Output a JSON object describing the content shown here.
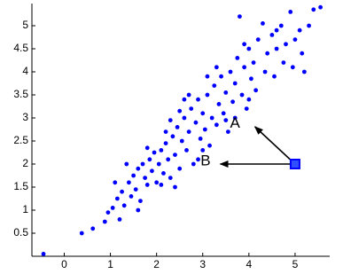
{
  "chart_data": {
    "type": "scatter",
    "x": [
      -0.45,
      0.38,
      0.62,
      0.88,
      0.95,
      1.05,
      1.2,
      1.15,
      1.25,
      1.3,
      1.4,
      1.45,
      1.5,
      1.55,
      1.6,
      1.65,
      1.7,
      1.75,
      1.8,
      1.85,
      1.9,
      1.95,
      2.0,
      2.05,
      2.1,
      2.15,
      2.2,
      2.25,
      2.3,
      2.35,
      2.4,
      2.45,
      2.5,
      2.55,
      2.6,
      2.65,
      2.7,
      2.75,
      2.8,
      2.85,
      2.9,
      2.95,
      3.0,
      3.05,
      3.1,
      3.15,
      3.2,
      3.25,
      3.3,
      3.35,
      3.4,
      3.45,
      3.5,
      3.55,
      3.6,
      3.65,
      3.7,
      3.75,
      3.8,
      3.85,
      3.9,
      3.95,
      4.0,
      4.05,
      4.1,
      4.15,
      4.2,
      4.3,
      4.35,
      4.4,
      4.5,
      4.55,
      4.6,
      4.7,
      4.75,
      4.8,
      4.9,
      4.95,
      5.0,
      5.1,
      5.15,
      5.2,
      5.3,
      5.4,
      5.55,
      2.3,
      2.1,
      1.6,
      3.0,
      2.7,
      3.5,
      3.3,
      1.8,
      2.9,
      2.4,
      3.7,
      4.0,
      4.6,
      2.6,
      2.2,
      3.1,
      1.35,
      1.1,
      3.9,
      2.5
    ],
    "y": [
      0.05,
      0.5,
      0.6,
      0.75,
      0.95,
      1.05,
      0.8,
      1.25,
      1.4,
      1.1,
      1.6,
      1.3,
      1.75,
      1.45,
      1.9,
      1.2,
      2.0,
      1.7,
      1.55,
      2.1,
      1.85,
      2.25,
      1.6,
      2.0,
      2.3,
      1.8,
      2.45,
      2.1,
      1.7,
      2.6,
      2.2,
      2.8,
      1.9,
      2.5,
      3.0,
      2.3,
      2.7,
      3.2,
      2.0,
      2.9,
      3.4,
      2.55,
      3.1,
      2.75,
      3.5,
      2.4,
      3.0,
      3.7,
      2.85,
      3.3,
      3.9,
      3.1,
      3.55,
      2.7,
      4.0,
      3.35,
      3.75,
      4.3,
      5.2,
      3.5,
      4.1,
      3.2,
      4.5,
      3.85,
      4.2,
      3.6,
      4.7,
      5.05,
      4.0,
      4.4,
      4.8,
      3.9,
      4.5,
      5.0,
      4.2,
      4.6,
      5.3,
      4.1,
      4.7,
      4.9,
      4.4,
      4.0,
      5.0,
      5.35,
      5.4,
      2.95,
      1.55,
      1.0,
      2.3,
      3.5,
      2.95,
      4.1,
      2.35,
      2.1,
      1.5,
      3.0,
      3.4,
      4.9,
      3.4,
      2.7,
      3.9,
      2.0,
      1.6,
      4.6,
      3.15
    ],
    "color": "#0000ff",
    "xlim": [
      -0.7,
      5.75
    ],
    "ylim": [
      0,
      5.5
    ],
    "xticks": [
      0,
      1,
      2,
      3,
      4,
      5
    ],
    "yticks": [
      0.5,
      1,
      1.5,
      2,
      2.5,
      3,
      3.5,
      4,
      4.5,
      5
    ],
    "marker": {
      "x": 5,
      "y": 2
    },
    "annotations": [
      {
        "text": "A",
        "x": 3.7,
        "y": 2.87,
        "arrow_x": 4.13,
        "arrow_y": 2.81
      },
      {
        "text": "B",
        "x": 3.06,
        "y": 2.06,
        "arrow_x": 3.38,
        "arrow_y": 2.0
      }
    ]
  }
}
